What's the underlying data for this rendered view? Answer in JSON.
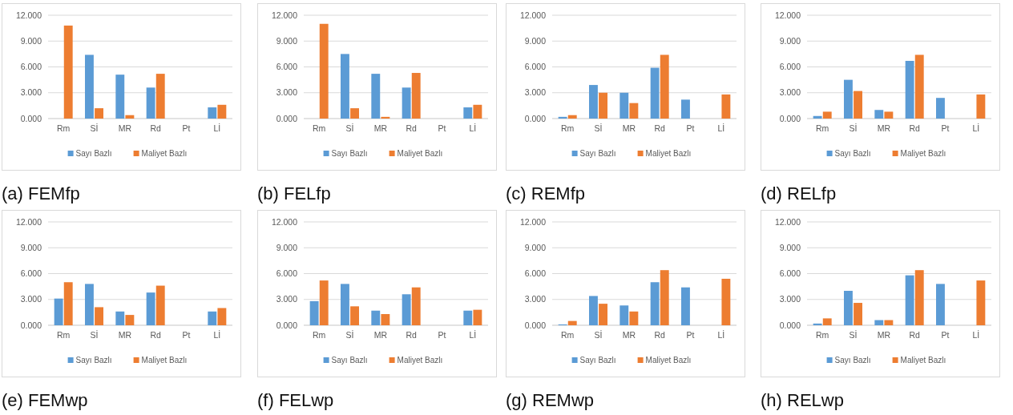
{
  "chart_data": [
    {
      "type": "bar",
      "title": "(a) FEMfp",
      "categories": [
        "Rm",
        "Sİ",
        "MR",
        "Rd",
        "Pt",
        "Lİ"
      ],
      "ylim": [
        0,
        12
      ],
      "yticks": [
        {
          "value": 0,
          "label": "0.000"
        },
        {
          "value": 3,
          "label": "3.000"
        },
        {
          "value": 6,
          "label": "6.000"
        },
        {
          "value": 9,
          "label": "9.000"
        },
        {
          "value": 12,
          "label": "12.000"
        }
      ],
      "grid": "y",
      "legend": "bottom",
      "series": [
        {
          "name": "Sayı Bazlı",
          "color": "#5b9bd5",
          "values": [
            0,
            7.4,
            5.1,
            3.6,
            0,
            1.3
          ]
        },
        {
          "name": "Maliyet Bazlı",
          "color": "#ed7d31",
          "values": [
            10.8,
            1.2,
            0.4,
            5.2,
            0,
            1.6
          ]
        }
      ]
    },
    {
      "type": "bar",
      "title": "(b) FELfp",
      "categories": [
        "Rm",
        "Sİ",
        "MR",
        "Rd",
        "Pt",
        "Lİ"
      ],
      "ylim": [
        0,
        12
      ],
      "yticks": [
        {
          "value": 0,
          "label": "0.000"
        },
        {
          "value": 3,
          "label": "3.000"
        },
        {
          "value": 6,
          "label": "6.000"
        },
        {
          "value": 9,
          "label": "9.000"
        },
        {
          "value": 12,
          "label": "12.000"
        }
      ],
      "grid": "y",
      "legend": "bottom",
      "series": [
        {
          "name": "Sayı Bazlı",
          "color": "#5b9bd5",
          "values": [
            0,
            7.5,
            5.2,
            3.6,
            0,
            1.3
          ]
        },
        {
          "name": "Maliyet Bazlı",
          "color": "#ed7d31",
          "values": [
            11.0,
            1.2,
            0.2,
            5.3,
            0,
            1.6
          ]
        }
      ]
    },
    {
      "type": "bar",
      "title": "(c) REMfp",
      "categories": [
        "Rm",
        "Sİ",
        "MR",
        "Rd",
        "Pt",
        "Lİ"
      ],
      "ylim": [
        0,
        12
      ],
      "yticks": [
        {
          "value": 0,
          "label": "0.000"
        },
        {
          "value": 3,
          "label": "3.000"
        },
        {
          "value": 6,
          "label": "6.000"
        },
        {
          "value": 9,
          "label": "9.000"
        },
        {
          "value": 12,
          "label": "12.000"
        }
      ],
      "grid": "y",
      "legend": "bottom",
      "series": [
        {
          "name": "Sayı Bazlı",
          "color": "#5b9bd5",
          "values": [
            0.2,
            3.9,
            3.0,
            5.9,
            2.2,
            0
          ]
        },
        {
          "name": "Maliyet Bazlı",
          "color": "#ed7d31",
          "values": [
            0.4,
            3.0,
            1.8,
            7.4,
            0,
            2.8
          ]
        }
      ]
    },
    {
      "type": "bar",
      "title": "(d) RELfp",
      "categories": [
        "Rm",
        "Sİ",
        "MR",
        "Rd",
        "Pt",
        "Lİ"
      ],
      "ylim": [
        0,
        12
      ],
      "yticks": [
        {
          "value": 0,
          "label": "0.000"
        },
        {
          "value": 3,
          "label": "3.000"
        },
        {
          "value": 6,
          "label": "6.000"
        },
        {
          "value": 9,
          "label": "9.000"
        },
        {
          "value": 12,
          "label": "12.000"
        }
      ],
      "grid": "y",
      "legend": "bottom",
      "series": [
        {
          "name": "Sayı Bazlı",
          "color": "#5b9bd5",
          "values": [
            0.3,
            4.5,
            1.0,
            6.7,
            2.4,
            0
          ]
        },
        {
          "name": "Maliyet Bazlı",
          "color": "#ed7d31",
          "values": [
            0.8,
            3.2,
            0.8,
            7.4,
            0,
            2.8
          ]
        }
      ]
    },
    {
      "type": "bar",
      "title": "(e) FEMwp",
      "categories": [
        "Rm",
        "Sİ",
        "MR",
        "Rd",
        "Pt",
        "Lİ"
      ],
      "ylim": [
        0,
        12
      ],
      "yticks": [
        {
          "value": 0,
          "label": "0.000"
        },
        {
          "value": 3,
          "label": "3.000"
        },
        {
          "value": 6,
          "label": "6.000"
        },
        {
          "value": 9,
          "label": "9.000"
        },
        {
          "value": 12,
          "label": "12.000"
        }
      ],
      "grid": "y",
      "legend": "bottom",
      "series": [
        {
          "name": "Sayı Bazlı",
          "color": "#5b9bd5",
          "values": [
            3.1,
            4.8,
            1.6,
            3.8,
            0,
            1.6
          ]
        },
        {
          "name": "Maliyet Bazlı",
          "color": "#ed7d31",
          "values": [
            5.0,
            2.1,
            1.2,
            4.6,
            0,
            2.0
          ]
        }
      ]
    },
    {
      "type": "bar",
      "title": "(f) FELwp",
      "categories": [
        "Rm",
        "Sİ",
        "MR",
        "Rd",
        "Pt",
        "Lİ"
      ],
      "ylim": [
        0,
        12
      ],
      "yticks": [
        {
          "value": 0,
          "label": "0.000"
        },
        {
          "value": 3,
          "label": "3.000"
        },
        {
          "value": 6,
          "label": "6.000"
        },
        {
          "value": 9,
          "label": "9.000"
        },
        {
          "value": 12,
          "label": "12.000"
        }
      ],
      "grid": "y",
      "legend": "bottom",
      "series": [
        {
          "name": "Sayı Bazlı",
          "color": "#5b9bd5",
          "values": [
            2.8,
            4.8,
            1.7,
            3.6,
            0,
            1.7
          ]
        },
        {
          "name": "Maliyet Bazlı",
          "color": "#ed7d31",
          "values": [
            5.2,
            2.2,
            1.3,
            4.4,
            0,
            1.8
          ]
        }
      ]
    },
    {
      "type": "bar",
      "title": "(g) REMwp",
      "categories": [
        "Rm",
        "Sİ",
        "MR",
        "Rd",
        "Pt",
        "Lİ"
      ],
      "ylim": [
        0,
        12
      ],
      "yticks": [
        {
          "value": 0,
          "label": "0.000"
        },
        {
          "value": 3,
          "label": "3.000"
        },
        {
          "value": 6,
          "label": "6.000"
        },
        {
          "value": 9,
          "label": "9.000"
        },
        {
          "value": 12,
          "label": "12.000"
        }
      ],
      "grid": "y",
      "legend": "bottom",
      "series": [
        {
          "name": "Sayı Bazlı",
          "color": "#5b9bd5",
          "values": [
            0.1,
            3.4,
            2.3,
            5.0,
            4.4,
            0
          ]
        },
        {
          "name": "Maliyet Bazlı",
          "color": "#ed7d31",
          "values": [
            0.5,
            2.5,
            1.6,
            6.4,
            0,
            5.4
          ]
        }
      ]
    },
    {
      "type": "bar",
      "title": "(h) RELwp",
      "categories": [
        "Rm",
        "Sİ",
        "MR",
        "Rd",
        "Pt",
        "Lİ"
      ],
      "ylim": [
        0,
        12
      ],
      "yticks": [
        {
          "value": 0,
          "label": "0.000"
        },
        {
          "value": 3,
          "label": "3.000"
        },
        {
          "value": 6,
          "label": "6.000"
        },
        {
          "value": 9,
          "label": "9.000"
        },
        {
          "value": 12,
          "label": "12.000"
        }
      ],
      "grid": "y",
      "legend": "bottom",
      "series": [
        {
          "name": "Sayı Bazlı",
          "color": "#5b9bd5",
          "values": [
            0.2,
            4.0,
            0.6,
            5.8,
            4.8,
            0
          ]
        },
        {
          "name": "Maliyet Bazlı",
          "color": "#ed7d31",
          "values": [
            0.8,
            2.6,
            0.6,
            6.4,
            0,
            5.2
          ]
        }
      ]
    }
  ]
}
